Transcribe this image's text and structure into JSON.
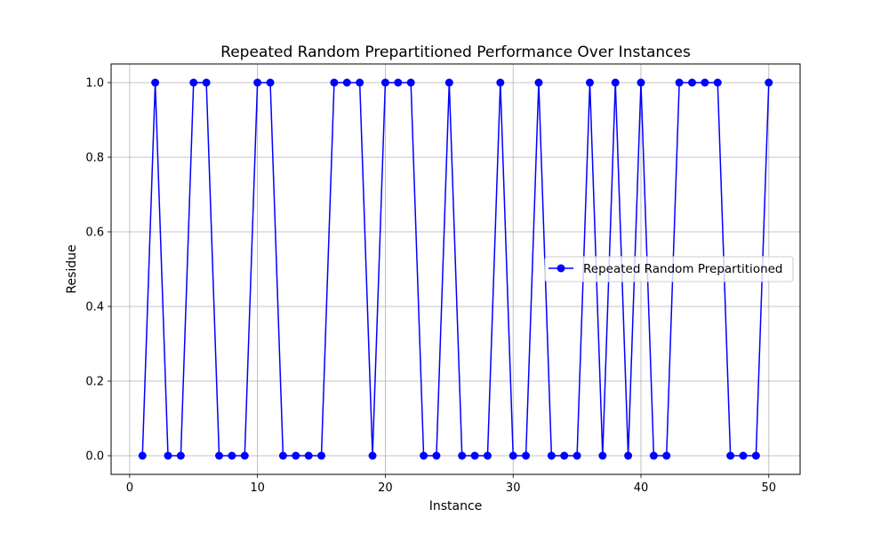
{
  "chart_data": {
    "type": "line",
    "title": "Repeated Random Prepartitioned Performance Over Instances",
    "xlabel": "Instance",
    "ylabel": "Residue",
    "xlim": [
      -1.45,
      52.45
    ],
    "ylim": [
      -0.05,
      1.05
    ],
    "xticks": [
      0,
      10,
      20,
      30,
      40,
      50
    ],
    "yticks": [
      0.0,
      0.2,
      0.4,
      0.6,
      0.8,
      1.0
    ],
    "xtick_labels": [
      "0",
      "10",
      "20",
      "30",
      "40",
      "50"
    ],
    "ytick_labels": [
      "0.0",
      "0.2",
      "0.4",
      "0.6",
      "0.8",
      "1.0"
    ],
    "grid": true,
    "legend_position": "center-right",
    "series": [
      {
        "name": "Repeated Random Prepartitioned",
        "color": "#0000ff",
        "marker": "circle",
        "x": [
          1,
          2,
          3,
          4,
          5,
          6,
          7,
          8,
          9,
          10,
          11,
          12,
          13,
          14,
          15,
          16,
          17,
          18,
          19,
          20,
          21,
          22,
          23,
          24,
          25,
          26,
          27,
          28,
          29,
          30,
          31,
          32,
          33,
          34,
          35,
          36,
          37,
          38,
          39,
          40,
          41,
          42,
          43,
          44,
          45,
          46,
          47,
          48,
          49,
          50
        ],
        "values": [
          0,
          1,
          0,
          0,
          1,
          1,
          0,
          0,
          0,
          1,
          1,
          0,
          0,
          0,
          0,
          1,
          1,
          1,
          0,
          1,
          1,
          1,
          0,
          0,
          1,
          0,
          0,
          0,
          1,
          0,
          0,
          1,
          0,
          0,
          0,
          1,
          0,
          1,
          0,
          1,
          0,
          0,
          1,
          1,
          1,
          1,
          0,
          0,
          0,
          1
        ]
      }
    ]
  }
}
